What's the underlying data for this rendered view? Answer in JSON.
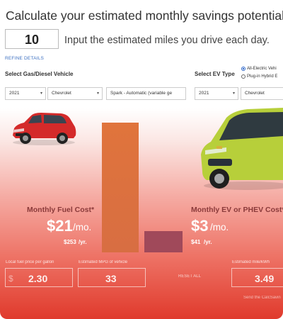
{
  "title": "Calculate your estimated monthly savings potential.",
  "miles": {
    "value": "10",
    "label": "Input the estimated miles you drive each day."
  },
  "refine_label": "REFINE DETAILS",
  "gas_section": {
    "label": "Select Gas/Diesel Vehicle",
    "year": "2021",
    "make": "Chevrolet",
    "model": "Spark - Automatic (variable ge"
  },
  "ev_section": {
    "label": "Select EV Type",
    "year": "2021",
    "make": "Chevrolet",
    "options": [
      "All-Electric Vehi",
      "Plug-in Hybrid E"
    ],
    "selected": "All-Electric Vehi"
  },
  "fuel": {
    "title": "Monthly Fuel Cost*",
    "month": "$21",
    "mo": "/mo.",
    "year": "$253",
    "yr": "/yr."
  },
  "ev": {
    "title": "Monthly EV or PHEV Cost*",
    "month": "$3",
    "mo": "/mo.",
    "year": "$41",
    "yr": "/yr."
  },
  "comparison": {
    "fuel_monthly": 21,
    "ev_monthly": 3
  },
  "inputs": {
    "fuel_price_label": "Local fuel price per gallon",
    "currency": "$",
    "fuel_price": "2.30",
    "mpg_label": "Estimated MPG of vehicle",
    "mpg": "33",
    "reset": "RESET ALL",
    "mi_kwh_label": "Estimated mile/kWh",
    "mi_kwh": "3.49"
  },
  "footer_text": "Send the CalcSavin",
  "colors": {
    "fuel_bar": "#de713d",
    "ev_bar": "#a0495a",
    "accent_link": "#3b6fc0"
  }
}
